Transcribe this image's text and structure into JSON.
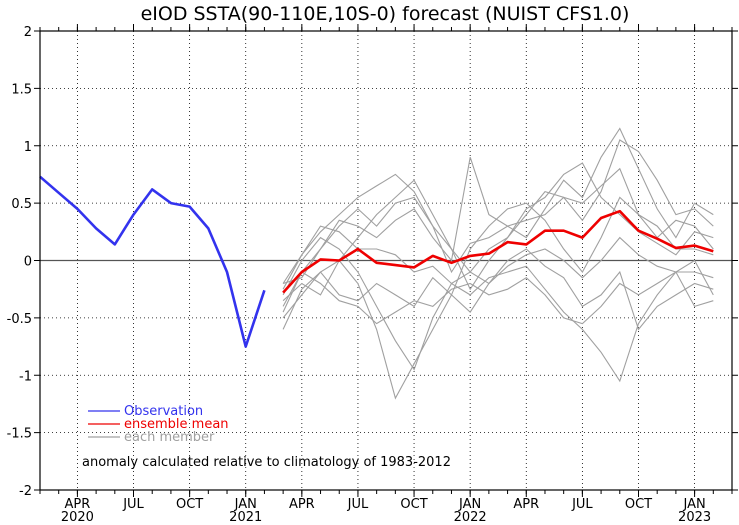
{
  "chart_data": {
    "type": "line",
    "title": "eIOD SSTA(90-110E,10S-0) forecast (NUIST CFS1.0)",
    "ylim": [
      -2,
      2
    ],
    "yticks": [
      2,
      1.5,
      1,
      0.5,
      0,
      -0.5,
      -1,
      -1.5,
      -2
    ],
    "ytick_labels": [
      "2",
      "1.5",
      "1",
      "0.5",
      "0",
      "-0.5",
      "-1",
      "-1.5",
      "-2"
    ],
    "x_start": "2020-02",
    "x_end": "2023-03",
    "month_ticks": [
      {
        "month": "2020-04",
        "label": "APR",
        "year": "2020"
      },
      {
        "month": "2020-07",
        "label": "JUL",
        "year": ""
      },
      {
        "month": "2020-10",
        "label": "OCT",
        "year": ""
      },
      {
        "month": "2021-01",
        "label": "JAN",
        "year": "2021"
      },
      {
        "month": "2021-04",
        "label": "APR",
        "year": ""
      },
      {
        "month": "2021-07",
        "label": "JUL",
        "year": ""
      },
      {
        "month": "2021-10",
        "label": "OCT",
        "year": ""
      },
      {
        "month": "2022-01",
        "label": "JAN",
        "year": "2022"
      },
      {
        "month": "2022-04",
        "label": "APR",
        "year": ""
      },
      {
        "month": "2022-07",
        "label": "JUL",
        "year": ""
      },
      {
        "month": "2022-10",
        "label": "OCT",
        "year": ""
      },
      {
        "month": "2023-01",
        "label": "JAN",
        "year": "2023"
      }
    ],
    "series": [
      {
        "name": "Observation",
        "color": "#3333ee",
        "x": [
          "2020-02",
          "2020-03",
          "2020-04",
          "2020-05",
          "2020-06",
          "2020-07",
          "2020-08",
          "2020-09",
          "2020-10",
          "2020-11",
          "2020-12",
          "2021-01",
          "2021-02"
        ],
        "y": [
          0.73,
          0.59,
          0.45,
          0.28,
          0.14,
          0.4,
          0.62,
          0.5,
          0.47,
          0.28,
          -0.1,
          -0.75,
          -0.26
        ]
      },
      {
        "name": "ensemble mean",
        "color": "#ee0000",
        "x": [
          "2021-03",
          "2021-04",
          "2021-05",
          "2021-06",
          "2021-07",
          "2021-08",
          "2021-09",
          "2021-10",
          "2021-11",
          "2021-12",
          "2022-01",
          "2022-02",
          "2022-03",
          "2022-04",
          "2022-05",
          "2022-06",
          "2022-07",
          "2022-08",
          "2022-09",
          "2022-10",
          "2022-11",
          "2022-12",
          "2023-01",
          "2023-02"
        ],
        "y": [
          -0.28,
          -0.1,
          0.01,
          0.0,
          0.1,
          -0.02,
          -0.04,
          -0.06,
          0.04,
          -0.02,
          0.04,
          0.06,
          0.16,
          0.14,
          0.26,
          0.26,
          0.2,
          0.37,
          0.43,
          0.26,
          0.19,
          0.11,
          0.13,
          0.08
        ]
      },
      {
        "name": "each member",
        "color": "#a0a0a0",
        "x": [
          "2021-03",
          "2021-04",
          "2021-05",
          "2021-06",
          "2021-07",
          "2021-08",
          "2021-09",
          "2021-10",
          "2021-11",
          "2021-12",
          "2022-01",
          "2022-02",
          "2022-03",
          "2022-04",
          "2022-05",
          "2022-06",
          "2022-07",
          "2022-08",
          "2022-09",
          "2022-10",
          "2022-11",
          "2022-12",
          "2023-01",
          "2023-02"
        ],
        "members": [
          [
            -0.6,
            -0.25,
            -0.1,
            -0.3,
            -0.35,
            -0.2,
            -0.3,
            -0.4,
            -0.15,
            -0.3,
            -0.45,
            -0.2,
            0.0,
            0.1,
            -0.05,
            -0.15,
            -0.4,
            -0.3,
            -0.1,
            -0.6,
            -0.4,
            -0.3,
            -0.2,
            -0.25
          ],
          [
            -0.45,
            -0.1,
            0.1,
            0.3,
            0.45,
            0.3,
            0.5,
            0.55,
            0.3,
            -0.1,
            0.15,
            0.2,
            0.3,
            0.35,
            0.4,
            0.55,
            0.5,
            0.65,
            0.8,
            0.4,
            0.3,
            0.1,
            0.1,
            0.05
          ],
          [
            -0.2,
            0.05,
            0.3,
            0.25,
            0.1,
            0.1,
            0.05,
            -0.1,
            -0.05,
            -0.2,
            -0.1,
            -0.2,
            -0.05,
            0.05,
            0.1,
            0.0,
            -0.15,
            0.0,
            0.2,
            0.05,
            -0.05,
            -0.1,
            -0.1,
            -0.15
          ],
          [
            -0.35,
            -0.2,
            -0.3,
            0.0,
            0.2,
            0.4,
            0.55,
            0.7,
            0.4,
            0.1,
            -0.25,
            0.0,
            0.2,
            0.4,
            0.6,
            0.55,
            0.35,
            0.6,
            1.05,
            0.95,
            0.7,
            0.4,
            0.45,
            0.3
          ],
          [
            -0.3,
            0.0,
            0.2,
            0.1,
            -0.1,
            -0.4,
            -0.7,
            -0.95,
            -0.5,
            -0.2,
            -0.3,
            -0.15,
            -0.1,
            -0.05,
            -0.25,
            -0.45,
            -0.6,
            -0.8,
            -1.05,
            -0.55,
            -0.3,
            -0.1,
            0.0,
            -0.3
          ],
          [
            -0.5,
            -0.3,
            -0.1,
            0.0,
            -0.2,
            -0.6,
            -1.2,
            -0.9,
            -0.6,
            -0.3,
            0.1,
            0.3,
            0.45,
            0.5,
            0.35,
            0.1,
            -0.1,
            0.2,
            0.55,
            0.4,
            0.2,
            0.35,
            0.3,
            0.1
          ],
          [
            -0.2,
            -0.15,
            0.1,
            0.35,
            0.3,
            0.2,
            0.35,
            0.45,
            0.2,
            0.0,
            0.9,
            0.4,
            0.3,
            0.2,
            0.45,
            0.7,
            0.55,
            0.9,
            1.15,
            0.8,
            0.45,
            0.2,
            0.5,
            0.4
          ],
          [
            -0.4,
            -0.1,
            -0.2,
            -0.35,
            -0.4,
            -0.55,
            -0.45,
            -0.35,
            -0.4,
            -0.25,
            -0.2,
            -0.3,
            -0.25,
            -0.15,
            -0.3,
            -0.5,
            -0.55,
            -0.4,
            -0.2,
            -0.3,
            -0.2,
            -0.1,
            -0.4,
            -0.35
          ],
          [
            -0.25,
            0.05,
            0.25,
            0.4,
            0.55,
            0.65,
            0.75,
            0.6,
            0.3,
            0.1,
            -0.1,
            0.1,
            0.2,
            0.45,
            0.55,
            0.75,
            0.85,
            0.55,
            0.4,
            0.25,
            0.15,
            0.05,
            0.25,
            0.2
          ]
        ]
      }
    ],
    "legend": {
      "placement": "bottom-left",
      "entries": [
        {
          "label": "Observation",
          "color": "#3333ee"
        },
        {
          "label": "ensemble mean",
          "color": "#ee0000"
        },
        {
          "label": "each member",
          "color": "#a0a0a0"
        }
      ]
    },
    "annotation": "anomaly calculated relative to climatology of 1983-2012",
    "grid": true,
    "zero_line": true
  }
}
